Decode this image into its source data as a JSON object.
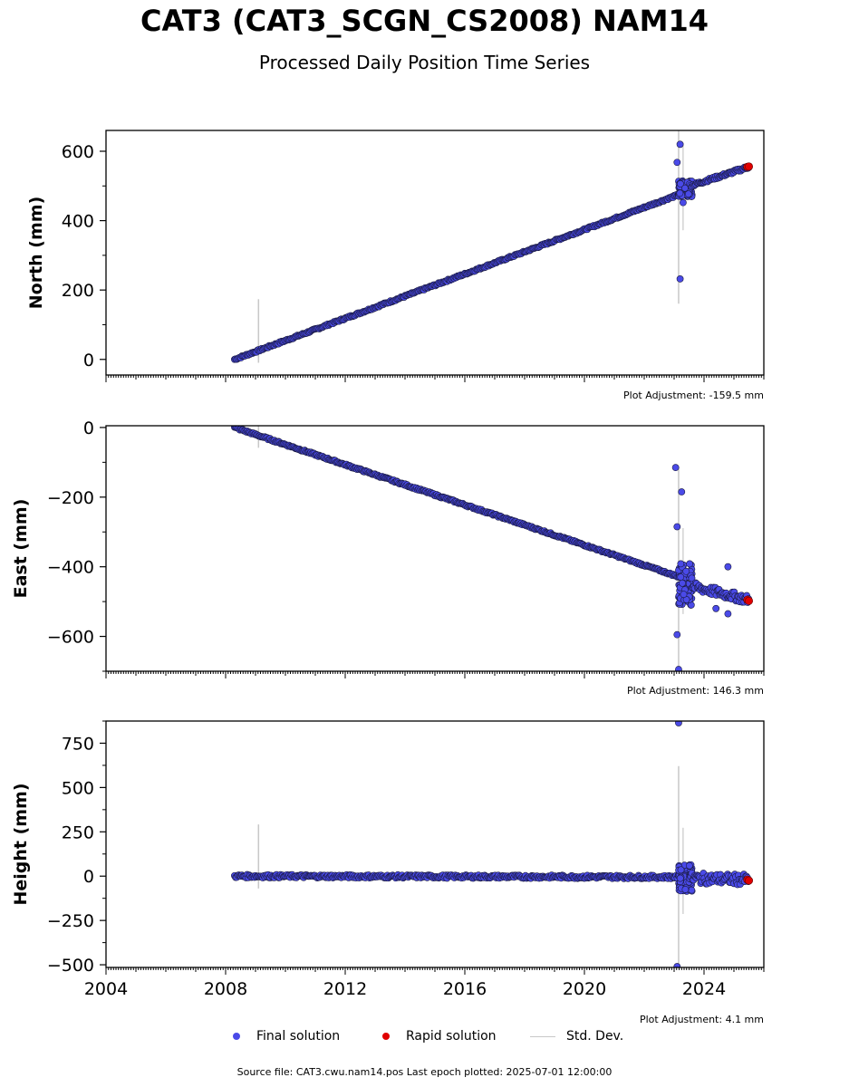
{
  "title": "CAT3 (CAT3_SCGN_CS2008) NAM14",
  "subtitle": "Processed Daily Position Time Series",
  "colors": {
    "final": "#4a4ae8",
    "final_edge": "#1a1a40",
    "rapid": "#e00000",
    "stddev": "#c8c8c8"
  },
  "chart_data": [
    {
      "type": "scatter",
      "ylabel": "North (mm)",
      "adjustment": "Plot Adjustment: -159.5 mm",
      "xlim": [
        2004,
        2026
      ],
      "ylim": [
        -45,
        660
      ],
      "yticks": [
        0,
        200,
        400,
        600
      ],
      "trend": {
        "start": [
          2008.3,
          0
        ],
        "end": [
          2023.25,
          478
        ],
        "post_start": [
          2023.25,
          492
        ],
        "post_end": [
          2025.5,
          555
        ]
      },
      "outliers": [
        [
          2023.1,
          568
        ],
        [
          2023.2,
          620
        ],
        [
          2023.2,
          232
        ],
        [
          2023.3,
          452
        ]
      ],
      "rapid": [
        [
          2025.45,
          555
        ],
        [
          2025.5,
          556
        ]
      ]
    },
    {
      "type": "scatter",
      "ylabel": "East (mm)",
      "adjustment": "Plot Adjustment: 146.3 mm",
      "xlim": [
        2004,
        2026
      ],
      "ylim": [
        -700,
        5
      ],
      "yticks": [
        0,
        -200,
        -400,
        -600
      ],
      "trend": {
        "start": [
          2008.3,
          0
        ],
        "end": [
          2023.2,
          -430
        ],
        "post_start": [
          2023.3,
          -450
        ],
        "post_end": [
          2025.5,
          -495
        ]
      },
      "outliers": [
        [
          2023.05,
          -115
        ],
        [
          2023.25,
          -185
        ],
        [
          2023.1,
          -285
        ],
        [
          2023.1,
          -595
        ],
        [
          2023.15,
          -695
        ],
        [
          2024.8,
          -400
        ],
        [
          2024.4,
          -520
        ],
        [
          2024.8,
          -535
        ]
      ],
      "rapid": [
        [
          2025.45,
          -495
        ],
        [
          2025.5,
          -498
        ]
      ]
    },
    {
      "type": "scatter",
      "ylabel": "Height (mm)",
      "adjustment": "Plot Adjustment: 4.1 mm",
      "xlim": [
        2004,
        2026
      ],
      "ylim": [
        -515,
        875
      ],
      "yticks": [
        750,
        500,
        250,
        0,
        -250,
        -500
      ],
      "xticks": [
        "2004",
        "2008",
        "2012",
        "2016",
        "2020",
        "2024"
      ],
      "trend": {
        "start": [
          2008.3,
          0
        ],
        "end": [
          2023.2,
          -5
        ],
        "post_start": [
          2023.2,
          -10
        ],
        "post_end": [
          2025.5,
          -20
        ]
      },
      "outliers": [
        [
          2023.15,
          865
        ],
        [
          2023.1,
          -510
        ]
      ],
      "rapid": [
        [
          2025.45,
          -20
        ],
        [
          2025.5,
          -25
        ]
      ]
    }
  ],
  "legend": {
    "final": "Final solution",
    "rapid": "Rapid solution",
    "stddev": "Std. Dev."
  },
  "footer": "Source file: CAT3.cwu.nam14.pos  Last epoch plotted: 2025-07-01 12:00:00"
}
